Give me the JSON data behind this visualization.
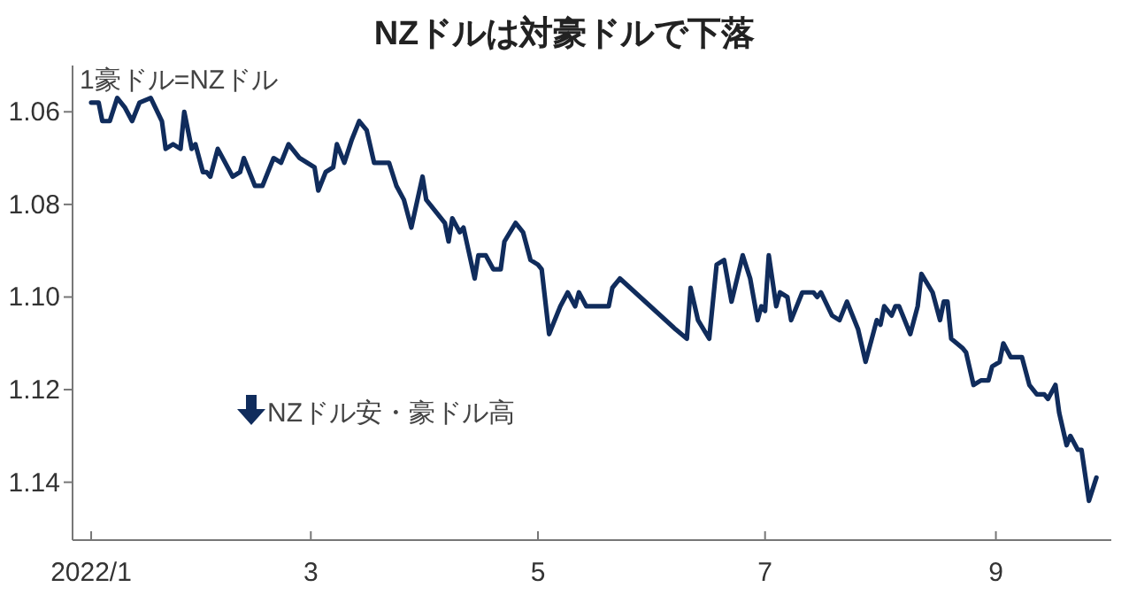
{
  "chart_data": {
    "type": "line",
    "title": "NZドルは対豪ドルで下落",
    "ylabel": "1豪ドル=NZドル",
    "annotations": [
      "NZドル安・豪ドル高"
    ],
    "xlim": [
      "2021-12-27",
      "2022-10-02"
    ],
    "xticks": [
      {
        "value": "2022-01-01",
        "label": "2022/1"
      },
      {
        "value": "2022-03-01",
        "label": "3"
      },
      {
        "value": "2022-05-01",
        "label": "5"
      },
      {
        "value": "2022-07-01",
        "label": "7"
      },
      {
        "value": "2022-09-01",
        "label": "9"
      }
    ],
    "ylim": [
      1.1525,
      1.05
    ],
    "yticks": [
      1.06,
      1.08,
      {
        "value": 1.1,
        "label": "1.10"
      },
      1.12,
      1.14
    ],
    "series": [
      {
        "color": "#102c5c",
        "x": [
          "2022-01-01",
          "2022-01-03",
          "2022-01-04",
          "2022-01-06",
          "2022-01-08",
          "2022-01-10",
          "2022-01-12",
          "2022-01-14",
          "2022-01-17",
          "2022-01-20",
          "2022-01-21",
          "2022-01-23",
          "2022-01-25",
          "2022-01-26",
          "2022-01-28",
          "2022-01-29",
          "2022-01-31",
          "2022-02-01",
          "2022-02-02",
          "2022-02-04",
          "2022-02-08",
          "2022-02-10",
          "2022-02-11",
          "2022-02-14",
          "2022-02-16",
          "2022-02-19",
          "2022-02-21",
          "2022-02-23",
          "2022-02-26",
          "2022-02-28",
          "2022-03-02",
          "2022-03-03",
          "2022-03-05",
          "2022-03-07",
          "2022-03-08",
          "2022-03-10",
          "2022-03-12",
          "2022-03-14",
          "2022-03-16",
          "2022-03-18",
          "2022-03-20",
          "2022-03-22",
          "2022-03-24",
          "2022-03-26",
          "2022-03-28",
          "2022-03-31",
          "2022-04-01",
          "2022-04-04",
          "2022-04-06",
          "2022-04-07",
          "2022-04-08",
          "2022-04-10",
          "2022-04-11",
          "2022-04-14",
          "2022-04-15",
          "2022-04-17",
          "2022-04-19",
          "2022-04-21",
          "2022-04-22",
          "2022-04-25",
          "2022-04-27",
          "2022-04-29",
          "2022-05-01",
          "2022-05-02",
          "2022-05-04",
          "2022-05-07",
          "2022-05-09",
          "2022-05-11",
          "2022-05-12",
          "2022-05-14",
          "2022-05-20",
          "2022-05-21",
          "2022-05-23",
          "2022-06-07",
          "2022-06-10",
          "2022-06-11",
          "2022-06-13",
          "2022-06-16",
          "2022-06-18",
          "2022-06-20",
          "2022-06-22",
          "2022-06-25",
          "2022-06-27",
          "2022-06-29",
          "2022-06-30",
          "2022-07-01",
          "2022-07-02",
          "2022-07-04",
          "2022-07-05",
          "2022-07-07",
          "2022-07-08",
          "2022-07-11",
          "2022-07-14",
          "2022-07-15",
          "2022-07-16",
          "2022-07-19",
          "2022-07-21",
          "2022-07-23",
          "2022-07-26",
          "2022-07-28",
          "2022-07-30",
          "2022-07-31",
          "2022-08-01",
          "2022-08-02",
          "2022-08-04",
          "2022-08-05",
          "2022-08-06",
          "2022-08-09",
          "2022-08-11",
          "2022-08-12",
          "2022-08-15",
          "2022-08-17",
          "2022-08-18",
          "2022-08-19",
          "2022-08-20",
          "2022-08-23",
          "2022-08-24",
          "2022-08-26",
          "2022-08-28",
          "2022-08-30",
          "2022-08-31",
          "2022-09-02",
          "2022-09-03",
          "2022-09-05",
          "2022-09-08",
          "2022-09-10",
          "2022-09-12",
          "2022-09-14",
          "2022-09-15",
          "2022-09-17",
          "2022-09-18",
          "2022-09-20",
          "2022-09-21",
          "2022-09-23",
          "2022-09-24",
          "2022-09-26",
          "2022-09-28"
        ],
        "values": [
          1.058,
          1.058,
          1.062,
          1.062,
          1.057,
          1.059,
          1.062,
          1.058,
          1.057,
          1.062,
          1.068,
          1.067,
          1.068,
          1.06,
          1.068,
          1.067,
          1.073,
          1.073,
          1.074,
          1.068,
          1.074,
          1.073,
          1.07,
          1.076,
          1.076,
          1.07,
          1.071,
          1.067,
          1.07,
          1.071,
          1.072,
          1.077,
          1.073,
          1.072,
          1.067,
          1.071,
          1.066,
          1.062,
          1.064,
          1.071,
          1.071,
          1.071,
          1.076,
          1.079,
          1.085,
          1.074,
          1.079,
          1.082,
          1.084,
          1.088,
          1.083,
          1.086,
          1.085,
          1.096,
          1.091,
          1.091,
          1.094,
          1.094,
          1.088,
          1.084,
          1.086,
          1.092,
          1.093,
          1.094,
          1.108,
          1.102,
          1.099,
          1.102,
          1.099,
          1.102,
          1.102,
          1.098,
          1.096,
          1.107,
          1.109,
          1.098,
          1.105,
          1.109,
          1.093,
          1.092,
          1.101,
          1.091,
          1.096,
          1.105,
          1.102,
          1.103,
          1.091,
          1.102,
          1.099,
          1.1,
          1.105,
          1.099,
          1.099,
          1.1,
          1.099,
          1.104,
          1.105,
          1.101,
          1.107,
          1.114,
          1.108,
          1.105,
          1.106,
          1.102,
          1.104,
          1.102,
          1.102,
          1.108,
          1.102,
          1.095,
          1.099,
          1.105,
          1.101,
          1.101,
          1.109,
          1.111,
          1.112,
          1.119,
          1.118,
          1.118,
          1.115,
          1.114,
          1.11,
          1.113,
          1.113,
          1.119,
          1.121,
          1.121,
          1.122,
          1.119,
          1.125,
          1.132,
          1.13,
          1.133,
          1.133,
          1.144,
          1.139
        ]
      }
    ]
  }
}
